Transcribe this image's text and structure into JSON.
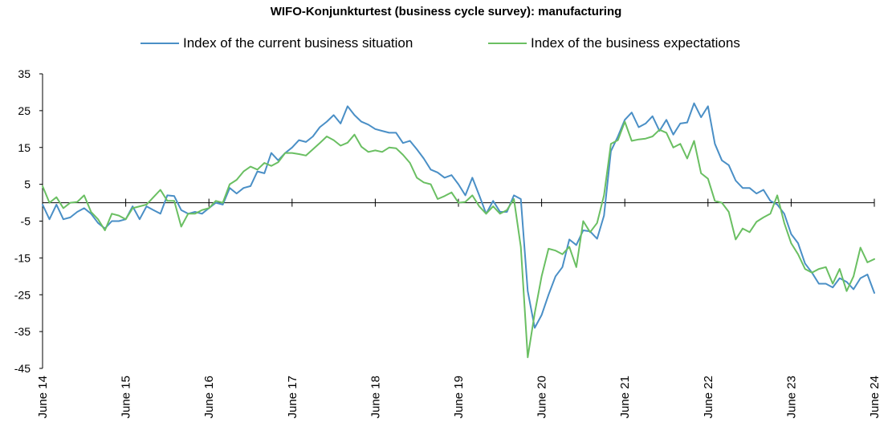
{
  "chart_data": {
    "type": "line",
    "title": "WIFO-Konjunkturtest (business cycle survey): manufacturing",
    "xlabel": "",
    "ylabel": "",
    "ylim": [
      -45,
      35
    ],
    "yticks": [
      35,
      25,
      15,
      5,
      -5,
      -15,
      -25,
      -35,
      -45
    ],
    "x_tick_labels": [
      "June 14",
      "June 15",
      "June 16",
      "June 17",
      "June 18",
      "June 19",
      "June 20",
      "June 21",
      "June 22",
      "June 23",
      "June 24"
    ],
    "x_start": "June 14",
    "x_end": "June 24",
    "frequency": "monthly",
    "grid": false,
    "legend_position": "top",
    "series": [
      {
        "name": "Index of the current business situation",
        "color": "#4a8fc6",
        "values": [
          -0.5,
          -4.5,
          -0.5,
          -4.5,
          -4,
          -2.5,
          -1.5,
          -3,
          -5.5,
          -7,
          -5,
          -5,
          -4.5,
          -1,
          -4.5,
          -1,
          -2,
          -3,
          2,
          1.8,
          -2,
          -3,
          -2.5,
          -3,
          -1.5,
          0,
          -0.5,
          4,
          2.5,
          4,
          4.5,
          8.5,
          8,
          13.5,
          11.5,
          13.5,
          15,
          17,
          16.5,
          18,
          20.5,
          22,
          23.8,
          21.5,
          26.2,
          23.8,
          22,
          21.2,
          20,
          19.5,
          19,
          19,
          16.2,
          16.8,
          14.5,
          12,
          9,
          8.2,
          6.8,
          7.5,
          5,
          2,
          6.8,
          2,
          -3,
          0.5,
          -2.5,
          -2.5,
          2,
          1,
          -24,
          -34,
          -30.5,
          -25,
          -20,
          -17.5,
          -10,
          -11.5,
          -7.5,
          -7.8,
          -9.8,
          -3.5,
          14,
          18,
          22.5,
          24.5,
          20.5,
          21.5,
          23.5,
          19.5,
          22.5,
          18.5,
          21.5,
          21.8,
          27,
          23.2,
          26.2,
          16,
          11.5,
          10.2,
          6,
          4,
          4,
          2.5,
          3.5,
          0.5,
          -0.5,
          -3,
          -8.5,
          -11,
          -16.5,
          -19,
          -22,
          -22,
          -23,
          -20.5,
          -21.5,
          -23.5,
          -20.5,
          -19.5,
          -24.5
        ]
      },
      {
        "name": "Index of the business expectations",
        "color": "#6abf62",
        "values": [
          4.5,
          0,
          1.5,
          -1.5,
          0,
          0.2,
          2,
          -2.5,
          -4.5,
          -7.5,
          -3,
          -3.5,
          -4.5,
          -1.5,
          -1,
          -0.5,
          1.5,
          3.5,
          0.5,
          0.5,
          -6.5,
          -3,
          -3,
          -2,
          -1.5,
          0.5,
          0,
          5,
          6.2,
          8.5,
          9.8,
          9,
          10.8,
          10,
          11,
          13.5,
          13.5,
          13.2,
          12.8,
          14.5,
          16.2,
          18,
          17,
          15.5,
          16.3,
          18.5,
          15.2,
          13.8,
          14.2,
          13.8,
          15,
          14.8,
          13,
          10.8,
          6.8,
          5.5,
          5,
          1,
          1.8,
          2.8,
          0,
          0.2,
          2,
          -1,
          -3,
          -1,
          -3,
          -2,
          1,
          -12,
          -42,
          -30,
          -20,
          -12.5,
          -13,
          -14,
          -12,
          -17.5,
          -5,
          -8,
          -5.5,
          2,
          16,
          17,
          22,
          16.8,
          17.2,
          17.4,
          18,
          19.8,
          19,
          15,
          16,
          12,
          16.8,
          8,
          6.5,
          0.5,
          0,
          -2.5,
          -10,
          -7,
          -8,
          -5.2,
          -4,
          -3,
          2,
          -5.5,
          -11,
          -14,
          -18,
          -19,
          -18,
          -17.5,
          -22,
          -18,
          -24,
          -20,
          -12.2,
          -16.2,
          -15.3
        ]
      }
    ]
  }
}
